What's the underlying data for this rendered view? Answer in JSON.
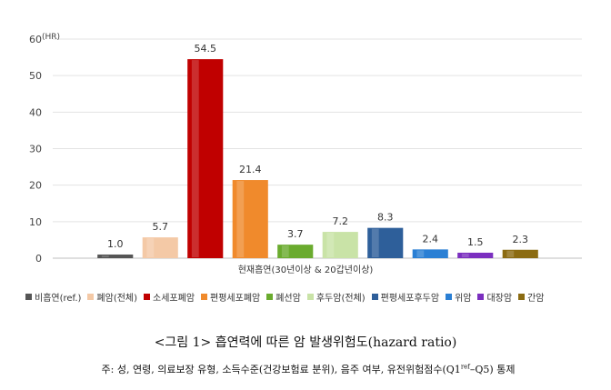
{
  "chart_data": {
    "type": "bar",
    "y_unit_label": "(HR)",
    "ylim": [
      0,
      60
    ],
    "y_ticks": [
      "0",
      "10",
      "20",
      "30",
      "40",
      "50",
      "60"
    ],
    "grid": true,
    "legend_position": "bottom",
    "xlabel": "현재흡연(30년이상 & 20갑년이상)",
    "series": [
      {
        "name": "비흡연(ref.)",
        "values": [
          1.0
        ],
        "label": "1.0",
        "color": "#555555"
      },
      {
        "name": "폐암(전체)",
        "values": [
          5.7
        ],
        "label": "5.7",
        "color": "#f4c9a6"
      },
      {
        "name": "소세포폐암",
        "values": [
          54.5
        ],
        "label": "54.5",
        "color": "#c00000"
      },
      {
        "name": "편평세포폐암",
        "values": [
          21.4
        ],
        "label": "21.4",
        "color": "#f08a2c"
      },
      {
        "name": "폐선암",
        "values": [
          3.7
        ],
        "label": "3.7",
        "color": "#6aab2e"
      },
      {
        "name": "후두암(전체)",
        "values": [
          7.2
        ],
        "label": "7.2",
        "color": "#c9e3a7"
      },
      {
        "name": "편평세포후두암",
        "values": [
          8.3
        ],
        "label": "8.3",
        "color": "#2e5f9a"
      },
      {
        "name": "위암",
        "values": [
          2.4
        ],
        "label": "2.4",
        "color": "#2a7fd4"
      },
      {
        "name": "대장암",
        "values": [
          1.5
        ],
        "label": "1.5",
        "color": "#7b2fbf"
      },
      {
        "name": "간암",
        "values": [
          2.3
        ],
        "label": "2.3",
        "color": "#8b6b12"
      }
    ]
  },
  "caption": "<그림 1> 흡연력에 따른 암 발생위험도(hazard ratio)",
  "note": {
    "prefix": "주: 성, 연령, 의료보장 유형, 소득수준(건강보험료 분위), 음주 여부, 유전위험점수(Q1",
    "sup": "ref",
    "suffix": "–Q5) 통제"
  }
}
